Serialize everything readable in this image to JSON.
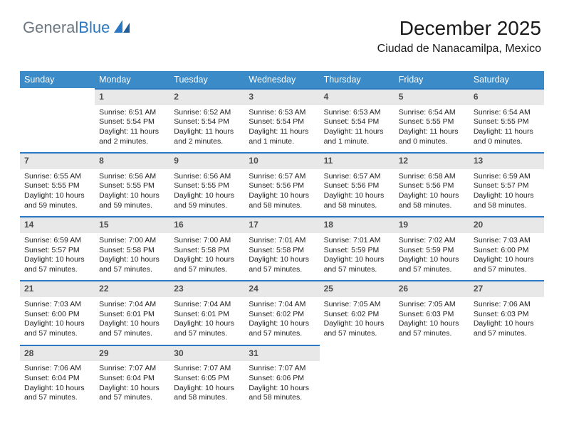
{
  "logo": {
    "part1": "General",
    "part2": "Blue"
  },
  "header": {
    "title": "December 2025",
    "location": "Ciudad de Nanacamilpa, Mexico"
  },
  "colors": {
    "header_bg": "#3b8bc9",
    "header_text": "#ffffff",
    "daynum_bg": "#e8e8e8",
    "daynum_border": "#2b78c2",
    "logo_general": "#6b7680",
    "logo_blue": "#2b78c2"
  },
  "weekdays": [
    "Sunday",
    "Monday",
    "Tuesday",
    "Wednesday",
    "Thursday",
    "Friday",
    "Saturday"
  ],
  "first_weekday": 1,
  "days": [
    {
      "n": 1,
      "sunrise": "6:51 AM",
      "sunset": "5:54 PM",
      "daylight": "11 hours and 2 minutes."
    },
    {
      "n": 2,
      "sunrise": "6:52 AM",
      "sunset": "5:54 PM",
      "daylight": "11 hours and 2 minutes."
    },
    {
      "n": 3,
      "sunrise": "6:53 AM",
      "sunset": "5:54 PM",
      "daylight": "11 hours and 1 minute."
    },
    {
      "n": 4,
      "sunrise": "6:53 AM",
      "sunset": "5:54 PM",
      "daylight": "11 hours and 1 minute."
    },
    {
      "n": 5,
      "sunrise": "6:54 AM",
      "sunset": "5:55 PM",
      "daylight": "11 hours and 0 minutes."
    },
    {
      "n": 6,
      "sunrise": "6:54 AM",
      "sunset": "5:55 PM",
      "daylight": "11 hours and 0 minutes."
    },
    {
      "n": 7,
      "sunrise": "6:55 AM",
      "sunset": "5:55 PM",
      "daylight": "10 hours and 59 minutes."
    },
    {
      "n": 8,
      "sunrise": "6:56 AM",
      "sunset": "5:55 PM",
      "daylight": "10 hours and 59 minutes."
    },
    {
      "n": 9,
      "sunrise": "6:56 AM",
      "sunset": "5:55 PM",
      "daylight": "10 hours and 59 minutes."
    },
    {
      "n": 10,
      "sunrise": "6:57 AM",
      "sunset": "5:56 PM",
      "daylight": "10 hours and 58 minutes."
    },
    {
      "n": 11,
      "sunrise": "6:57 AM",
      "sunset": "5:56 PM",
      "daylight": "10 hours and 58 minutes."
    },
    {
      "n": 12,
      "sunrise": "6:58 AM",
      "sunset": "5:56 PM",
      "daylight": "10 hours and 58 minutes."
    },
    {
      "n": 13,
      "sunrise": "6:59 AM",
      "sunset": "5:57 PM",
      "daylight": "10 hours and 58 minutes."
    },
    {
      "n": 14,
      "sunrise": "6:59 AM",
      "sunset": "5:57 PM",
      "daylight": "10 hours and 57 minutes."
    },
    {
      "n": 15,
      "sunrise": "7:00 AM",
      "sunset": "5:58 PM",
      "daylight": "10 hours and 57 minutes."
    },
    {
      "n": 16,
      "sunrise": "7:00 AM",
      "sunset": "5:58 PM",
      "daylight": "10 hours and 57 minutes."
    },
    {
      "n": 17,
      "sunrise": "7:01 AM",
      "sunset": "5:58 PM",
      "daylight": "10 hours and 57 minutes."
    },
    {
      "n": 18,
      "sunrise": "7:01 AM",
      "sunset": "5:59 PM",
      "daylight": "10 hours and 57 minutes."
    },
    {
      "n": 19,
      "sunrise": "7:02 AM",
      "sunset": "5:59 PM",
      "daylight": "10 hours and 57 minutes."
    },
    {
      "n": 20,
      "sunrise": "7:03 AM",
      "sunset": "6:00 PM",
      "daylight": "10 hours and 57 minutes."
    },
    {
      "n": 21,
      "sunrise": "7:03 AM",
      "sunset": "6:00 PM",
      "daylight": "10 hours and 57 minutes."
    },
    {
      "n": 22,
      "sunrise": "7:04 AM",
      "sunset": "6:01 PM",
      "daylight": "10 hours and 57 minutes."
    },
    {
      "n": 23,
      "sunrise": "7:04 AM",
      "sunset": "6:01 PM",
      "daylight": "10 hours and 57 minutes."
    },
    {
      "n": 24,
      "sunrise": "7:04 AM",
      "sunset": "6:02 PM",
      "daylight": "10 hours and 57 minutes."
    },
    {
      "n": 25,
      "sunrise": "7:05 AM",
      "sunset": "6:02 PM",
      "daylight": "10 hours and 57 minutes."
    },
    {
      "n": 26,
      "sunrise": "7:05 AM",
      "sunset": "6:03 PM",
      "daylight": "10 hours and 57 minutes."
    },
    {
      "n": 27,
      "sunrise": "7:06 AM",
      "sunset": "6:03 PM",
      "daylight": "10 hours and 57 minutes."
    },
    {
      "n": 28,
      "sunrise": "7:06 AM",
      "sunset": "6:04 PM",
      "daylight": "10 hours and 57 minutes."
    },
    {
      "n": 29,
      "sunrise": "7:07 AM",
      "sunset": "6:04 PM",
      "daylight": "10 hours and 57 minutes."
    },
    {
      "n": 30,
      "sunrise": "7:07 AM",
      "sunset": "6:05 PM",
      "daylight": "10 hours and 58 minutes."
    },
    {
      "n": 31,
      "sunrise": "7:07 AM",
      "sunset": "6:06 PM",
      "daylight": "10 hours and 58 minutes."
    }
  ],
  "labels": {
    "sunrise": "Sunrise:",
    "sunset": "Sunset:",
    "daylight": "Daylight:"
  }
}
